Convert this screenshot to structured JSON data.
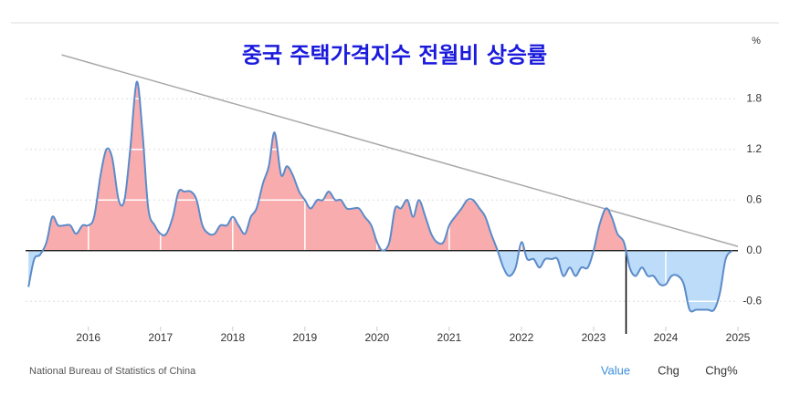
{
  "chart_data": {
    "type": "area",
    "title": "중국 주택가격지수 전월비 상승률",
    "unit": "%",
    "source": "National Bureau of Statistics of China",
    "buttons": [
      "Value",
      "Chg",
      "Chg%"
    ],
    "x": [
      2015.17,
      2015.25,
      2015.33,
      2015.42,
      2015.5,
      2015.58,
      2015.67,
      2015.75,
      2015.83,
      2015.92,
      2016,
      2016.08,
      2016.17,
      2016.25,
      2016.33,
      2016.42,
      2016.5,
      2016.58,
      2016.67,
      2016.75,
      2016.83,
      2016.92,
      2017,
      2017.08,
      2017.17,
      2017.25,
      2017.33,
      2017.42,
      2017.5,
      2017.58,
      2017.67,
      2017.75,
      2017.83,
      2017.92,
      2018,
      2018.08,
      2018.17,
      2018.25,
      2018.33,
      2018.42,
      2018.5,
      2018.58,
      2018.67,
      2018.75,
      2018.83,
      2018.92,
      2019,
      2019.08,
      2019.17,
      2019.25,
      2019.33,
      2019.42,
      2019.5,
      2019.58,
      2019.67,
      2019.75,
      2019.83,
      2019.92,
      2020,
      2020.08,
      2020.17,
      2020.25,
      2020.33,
      2020.42,
      2020.5,
      2020.58,
      2020.67,
      2020.75,
      2020.83,
      2020.92,
      2021,
      2021.08,
      2021.17,
      2021.25,
      2021.33,
      2021.42,
      2021.5,
      2021.58,
      2021.67,
      2021.75,
      2021.83,
      2021.92,
      2022,
      2022.08,
      2022.17,
      2022.25,
      2022.33,
      2022.42,
      2022.5,
      2022.58,
      2022.67,
      2022.75,
      2022.83,
      2022.92,
      2023,
      2023.08,
      2023.17,
      2023.25,
      2023.33,
      2023.42,
      2023.5,
      2023.58,
      2023.67,
      2023.75,
      2023.83,
      2023.92,
      2024,
      2024.08,
      2024.17,
      2024.25,
      2024.33,
      2024.42,
      2024.5,
      2024.58,
      2024.67,
      2024.75,
      2024.83,
      2024.92
    ],
    "values": [
      -0.43,
      -0.1,
      -0.05,
      0.1,
      0.4,
      0.3,
      0.3,
      0.3,
      0.2,
      0.3,
      0.3,
      0.4,
      0.9,
      1.2,
      1.1,
      0.6,
      0.6,
      1.2,
      2.0,
      1.4,
      0.5,
      0.3,
      0.2,
      0.2,
      0.4,
      0.7,
      0.7,
      0.7,
      0.6,
      0.3,
      0.2,
      0.2,
      0.3,
      0.3,
      0.4,
      0.3,
      0.2,
      0.4,
      0.5,
      0.8,
      1.0,
      1.4,
      0.9,
      1.0,
      0.9,
      0.7,
      0.6,
      0.5,
      0.6,
      0.6,
      0.7,
      0.6,
      0.6,
      0.5,
      0.5,
      0.5,
      0.4,
      0.3,
      0.1,
      0.0,
      0.1,
      0.5,
      0.5,
      0.6,
      0.4,
      0.6,
      0.4,
      0.2,
      0.1,
      0.1,
      0.3,
      0.4,
      0.5,
      0.6,
      0.6,
      0.5,
      0.4,
      0.2,
      0.0,
      -0.2,
      -0.3,
      -0.2,
      0.1,
      -0.1,
      -0.1,
      -0.2,
      -0.1,
      -0.1,
      -0.1,
      -0.3,
      -0.2,
      -0.3,
      -0.2,
      -0.2,
      0.0,
      0.3,
      0.5,
      0.4,
      0.2,
      0.1,
      -0.2,
      -0.3,
      -0.2,
      -0.3,
      -0.3,
      -0.4,
      -0.4,
      -0.3,
      -0.3,
      -0.4,
      -0.7,
      -0.7,
      -0.7,
      -0.7,
      -0.7,
      -0.5,
      -0.1,
      0.0
    ],
    "color": "#5b8bc9",
    "positive_fill": "#f9acae",
    "negative_fill": "#bcdcf9",
    "trendline": {
      "x": [
        2015.63,
        2025
      ],
      "y": [
        2.32,
        0.05
      ],
      "color": "#aaaaaa"
    },
    "vline": 2023.45,
    "xlim": [
      2015.13,
      2025
    ],
    "xticks": [
      2016,
      2017,
      2018,
      2019,
      2020,
      2021,
      2022,
      2023,
      2024,
      2025
    ],
    "ylim": [
      -0.9,
      2.3
    ],
    "yticks": [
      1.8,
      1.2,
      0.6,
      {
        "value": 0,
        "label": "0.0"
      },
      -0.6
    ],
    "grid": true
  }
}
